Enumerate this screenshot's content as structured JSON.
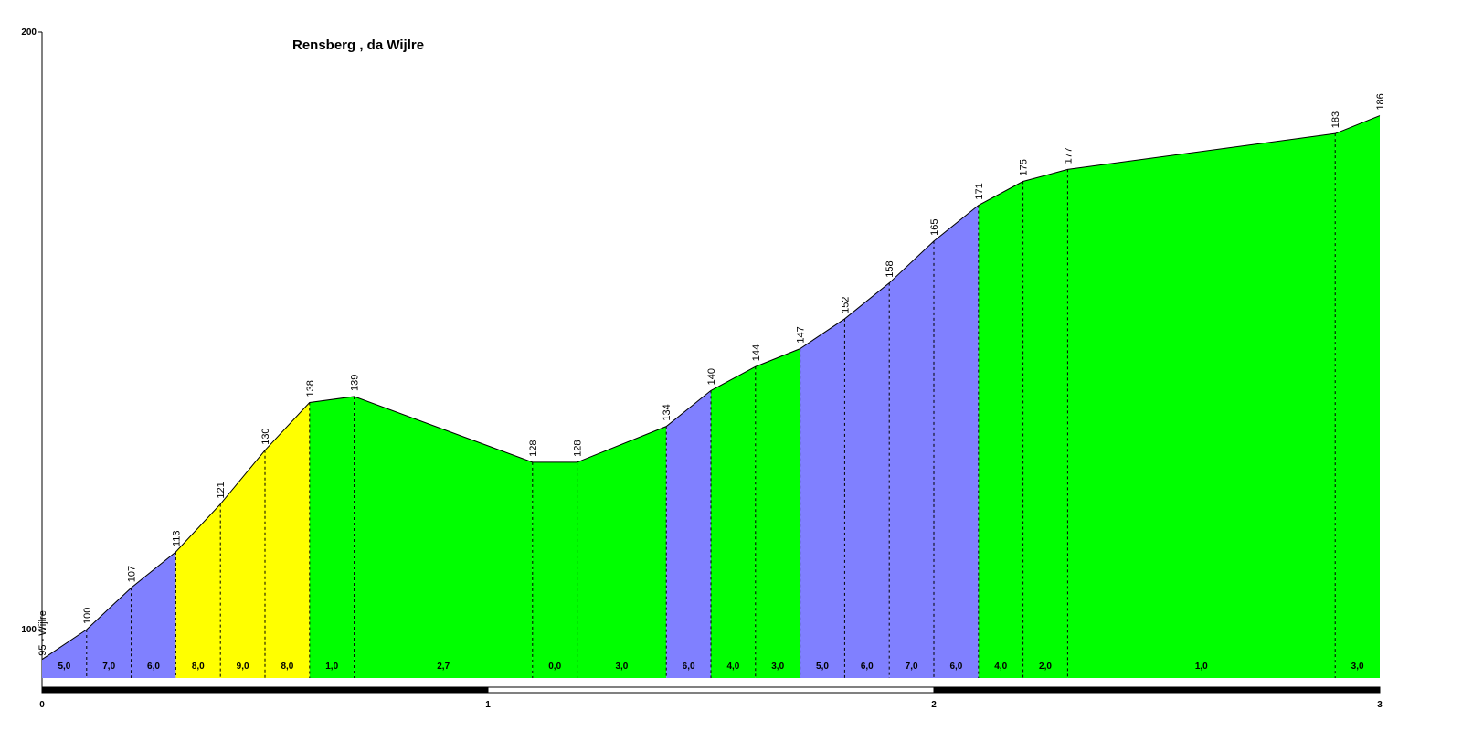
{
  "chart_data": {
    "type": "area",
    "title": "Rensberg , da Wijlre",
    "xlabel": "",
    "ylabel": "",
    "xlim": [
      0,
      3
    ],
    "ylim": [
      95,
      200
    ],
    "y_ticks": [
      "100",
      "200"
    ],
    "x_ticks": [
      "0",
      "1",
      "2",
      "3"
    ],
    "start_label": "95 - Wijlre",
    "points": [
      {
        "x": 0.0,
        "y": 95,
        "label": ""
      },
      {
        "x": 0.1,
        "y": 100,
        "label": "100"
      },
      {
        "x": 0.2,
        "y": 107,
        "label": "107"
      },
      {
        "x": 0.3,
        "y": 113,
        "label": "113"
      },
      {
        "x": 0.4,
        "y": 121,
        "label": "121"
      },
      {
        "x": 0.5,
        "y": 130,
        "label": "130"
      },
      {
        "x": 0.6,
        "y": 138,
        "label": "138"
      },
      {
        "x": 0.7,
        "y": 139,
        "label": "139"
      },
      {
        "x": 1.1,
        "y": 128,
        "label": "128"
      },
      {
        "x": 1.2,
        "y": 128,
        "label": "128"
      },
      {
        "x": 1.4,
        "y": 134,
        "label": "134"
      },
      {
        "x": 1.5,
        "y": 140,
        "label": "140"
      },
      {
        "x": 1.6,
        "y": 144,
        "label": "144"
      },
      {
        "x": 1.7,
        "y": 147,
        "label": "147"
      },
      {
        "x": 1.8,
        "y": 152,
        "label": "152"
      },
      {
        "x": 1.9,
        "y": 158,
        "label": "158"
      },
      {
        "x": 2.0,
        "y": 165,
        "label": "165"
      },
      {
        "x": 2.1,
        "y": 171,
        "label": "171"
      },
      {
        "x": 2.2,
        "y": 175,
        "label": "175"
      },
      {
        "x": 2.3,
        "y": 177,
        "label": "177"
      },
      {
        "x": 2.9,
        "y": 183,
        "label": "183"
      },
      {
        "x": 3.0,
        "y": 186,
        "label": "186"
      }
    ],
    "segments": [
      {
        "gradient": "5,0",
        "color": "#8080ff"
      },
      {
        "gradient": "7,0",
        "color": "#8080ff"
      },
      {
        "gradient": "6,0",
        "color": "#8080ff"
      },
      {
        "gradient": "8,0",
        "color": "#ffff00"
      },
      {
        "gradient": "9,0",
        "color": "#ffff00"
      },
      {
        "gradient": "8,0",
        "color": "#ffff00"
      },
      {
        "gradient": "1,0",
        "color": "#00ff00"
      },
      {
        "gradient": "2,7",
        "color": "#00ff00"
      },
      {
        "gradient": "0,0",
        "color": "#00ff00"
      },
      {
        "gradient": "3,0",
        "color": "#00ff00"
      },
      {
        "gradient": "6,0",
        "color": "#8080ff"
      },
      {
        "gradient": "4,0",
        "color": "#00ff00"
      },
      {
        "gradient": "3,0",
        "color": "#00ff00"
      },
      {
        "gradient": "5,0",
        "color": "#8080ff"
      },
      {
        "gradient": "6,0",
        "color": "#8080ff"
      },
      {
        "gradient": "7,0",
        "color": "#8080ff"
      },
      {
        "gradient": "6,0",
        "color": "#8080ff"
      },
      {
        "gradient": "4,0",
        "color": "#00ff00"
      },
      {
        "gradient": "2,0",
        "color": "#00ff00"
      },
      {
        "gradient": "1,0",
        "color": "#00ff00"
      },
      {
        "gradient": "3,0",
        "color": "#00ff00"
      }
    ]
  }
}
